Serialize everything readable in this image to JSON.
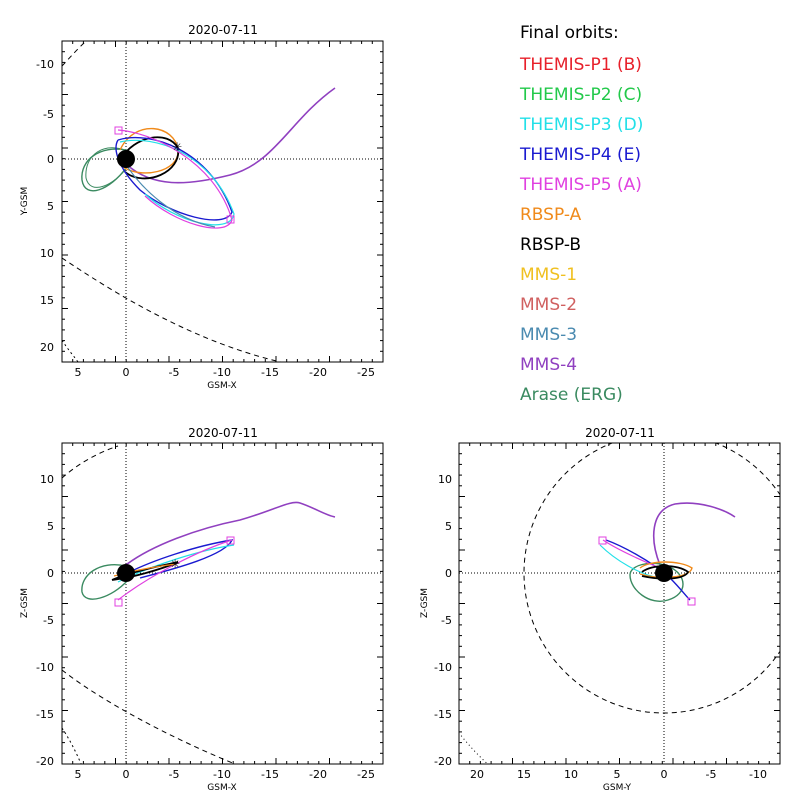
{
  "legend": {
    "title": "Final orbits:",
    "items": [
      {
        "label": "THEMIS-P1 (B)",
        "color": "#e8202a"
      },
      {
        "label": "THEMIS-P2 (C)",
        "color": "#22c94a"
      },
      {
        "label": "THEMIS-P3 (D)",
        "color": "#22e0e8"
      },
      {
        "label": "THEMIS-P4 (E)",
        "color": "#1a1ad0"
      },
      {
        "label": "THEMIS-P5 (A)",
        "color": "#e040e0"
      },
      {
        "label": "RBSP-A",
        "color": "#f08a1a"
      },
      {
        "label": "RBSP-B",
        "color": "#000000"
      },
      {
        "label": "MMS-1",
        "color": "#f0c020"
      },
      {
        "label": "MMS-2",
        "color": "#d06060"
      },
      {
        "label": "MMS-3",
        "color": "#4a8ab0"
      },
      {
        "label": "MMS-4",
        "color": "#9040c0"
      },
      {
        "label": "Arase (ERG)",
        "color": "#3a8a60"
      }
    ]
  },
  "panels": [
    {
      "id": "xy",
      "title": "2020-07-11",
      "xlabel": "GSM-X",
      "ylabel": "Y-GSM",
      "xticks": [
        "5",
        "0",
        "-5",
        "-10",
        "-15",
        "-20",
        "-25"
      ],
      "yticks": [
        "-10",
        "-5",
        "0",
        "5",
        "10",
        "15",
        "20"
      ]
    },
    {
      "id": "xz",
      "title": "2020-07-11",
      "xlabel": "GSM-X",
      "ylabel": "Z-GSM",
      "xticks": [
        "5",
        "0",
        "-5",
        "-10",
        "-15",
        "-20",
        "-25"
      ],
      "yticks": [
        "10",
        "5",
        "0",
        "-5",
        "-10",
        "-15",
        "-20"
      ]
    },
    {
      "id": "yz",
      "title": "2020-07-11",
      "xlabel": "GSM-Y",
      "ylabel": "Z-GSM",
      "xticks": [
        "20",
        "15",
        "10",
        "5",
        "0",
        "-5",
        "-10"
      ],
      "yticks": [
        "10",
        "5",
        "0",
        "-5",
        "-10",
        "-15",
        "-20"
      ]
    }
  ]
}
